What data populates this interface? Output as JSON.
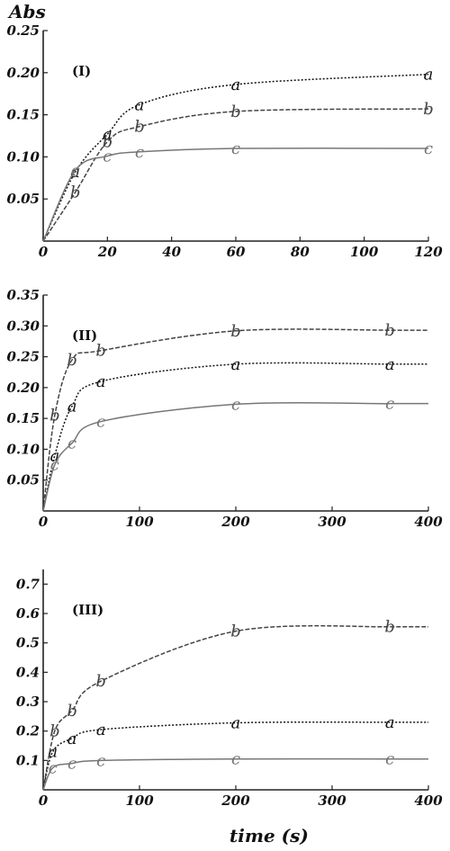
{
  "y_axis_label": "Abs",
  "x_axis_label": "time (s)",
  "chart_data": [
    {
      "type": "line",
      "panel_label": "(I)",
      "xlim": [
        0,
        120
      ],
      "ylim": [
        0,
        0.25
      ],
      "x_ticks": [
        "0",
        "20",
        "40",
        "60",
        "80",
        "100",
        "120"
      ],
      "y_ticks": [
        "0.05",
        "0.10",
        "0.15",
        "0.20",
        "0.25"
      ],
      "grid": false,
      "series": [
        {
          "name": "a",
          "color": "#111111",
          "dash": "dotted",
          "x": [
            0,
            10,
            20,
            30,
            60,
            120
          ],
          "values": [
            0.0,
            0.082,
            0.127,
            0.162,
            0.186,
            0.198
          ],
          "asymptote": 0.198
        },
        {
          "name": "b",
          "color": "#444444",
          "dash": "dashed",
          "x": [
            0,
            10,
            20,
            30,
            60,
            120
          ],
          "values": [
            0.0,
            0.058,
            0.118,
            0.136,
            0.154,
            0.157
          ],
          "asymptote": 0.157
        },
        {
          "name": "c",
          "color": "#777777",
          "dash": "solid",
          "x": [
            0,
            10,
            20,
            30,
            60,
            120
          ],
          "values": [
            0.0,
            0.084,
            0.101,
            0.106,
            0.11,
            0.11
          ],
          "asymptote": 0.11
        }
      ]
    },
    {
      "type": "line",
      "panel_label": "(II)",
      "xlim": [
        0,
        400
      ],
      "ylim": [
        0,
        0.35
      ],
      "x_ticks": [
        "0",
        "100",
        "200",
        "300",
        "400"
      ],
      "y_ticks": [
        "0.05",
        "0.10",
        "0.15",
        "0.20",
        "0.25",
        "0.30",
        "0.35"
      ],
      "grid": false,
      "series": [
        {
          "name": "a",
          "color": "#111111",
          "dash": "dotted",
          "x": [
            0,
            12,
            30,
            60,
            200,
            360
          ],
          "values": [
            0.0,
            0.09,
            0.17,
            0.21,
            0.238,
            0.238
          ],
          "asymptote": 0.238
        },
        {
          "name": "b",
          "color": "#444444",
          "dash": "dashed",
          "x": [
            0,
            12,
            30,
            60,
            200,
            360
          ],
          "values": [
            0.0,
            0.155,
            0.245,
            0.26,
            0.292,
            0.293
          ],
          "asymptote": 0.293
        },
        {
          "name": "c",
          "color": "#777777",
          "dash": "solid",
          "x": [
            0,
            12,
            30,
            60,
            200,
            360
          ],
          "values": [
            0.0,
            0.075,
            0.11,
            0.145,
            0.173,
            0.174
          ],
          "asymptote": 0.174
        }
      ]
    },
    {
      "type": "line",
      "panel_label": "(III)",
      "xlim": [
        0,
        400
      ],
      "ylim": [
        0,
        0.75
      ],
      "x_ticks": [
        "0",
        "100",
        "200",
        "300",
        "400"
      ],
      "y_ticks": [
        "0.1",
        "0.2",
        "0.3",
        "0.4",
        "0.5",
        "0.6",
        "0.7"
      ],
      "grid": false,
      "series": [
        {
          "name": "a",
          "color": "#111111",
          "dash": "dotted",
          "x": [
            0,
            10,
            30,
            60,
            200,
            360
          ],
          "values": [
            0.0,
            0.13,
            0.175,
            0.205,
            0.228,
            0.23
          ],
          "asymptote": 0.23
        },
        {
          "name": "b",
          "color": "#444444",
          "dash": "dashed",
          "x": [
            0,
            12,
            30,
            60,
            200,
            360
          ],
          "values": [
            0.0,
            0.2,
            0.27,
            0.37,
            0.54,
            0.555
          ],
          "asymptote": 0.555
        },
        {
          "name": "c",
          "color": "#777777",
          "dash": "solid",
          "x": [
            0,
            10,
            30,
            60,
            200,
            360
          ],
          "values": [
            0.0,
            0.075,
            0.09,
            0.1,
            0.105,
            0.105
          ],
          "asymptote": 0.105
        }
      ]
    }
  ]
}
